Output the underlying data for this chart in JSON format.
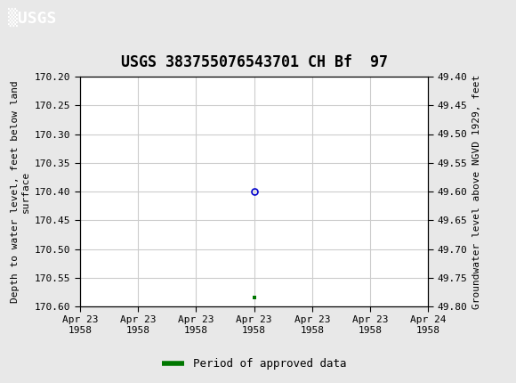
{
  "title": "USGS 383755076543701 CH Bf  97",
  "header_bg_color": "#006633",
  "plot_bg_color": "#ffffff",
  "outer_bg_color": "#e8e8e8",
  "grid_color": "#cccccc",
  "ylabel_left": "Depth to water level, feet below land\nsurface",
  "ylabel_right": "Groundwater level above NGVD 1929, feet",
  "ylim_left": [
    170.2,
    170.6
  ],
  "ylim_right": [
    49.8,
    49.4
  ],
  "yticks_left": [
    170.2,
    170.25,
    170.3,
    170.35,
    170.4,
    170.45,
    170.5,
    170.55,
    170.6
  ],
  "yticks_right": [
    49.8,
    49.75,
    49.7,
    49.65,
    49.6,
    49.55,
    49.5,
    49.45,
    49.4
  ],
  "xlim": [
    0,
    6
  ],
  "xtick_labels": [
    "Apr 23\n1958",
    "Apr 23\n1958",
    "Apr 23\n1958",
    "Apr 23\n1958",
    "Apr 23\n1958",
    "Apr 23\n1958",
    "Apr 24\n1958"
  ],
  "xtick_positions": [
    0,
    1,
    2,
    3,
    4,
    5,
    6
  ],
  "point_x": 3,
  "point_y": 170.4,
  "point_color": "#0000cc",
  "point_marker": "o",
  "point_marker_size": 5,
  "green_point_x": 3,
  "green_point_y": 170.585,
  "green_point_color": "#007700",
  "green_point_marker": "s",
  "green_point_marker_size": 3.5,
  "legend_label": "Period of approved data",
  "legend_color": "#007700",
  "font_family": "monospace",
  "title_fontsize": 12,
  "axis_label_fontsize": 8,
  "tick_fontsize": 8
}
